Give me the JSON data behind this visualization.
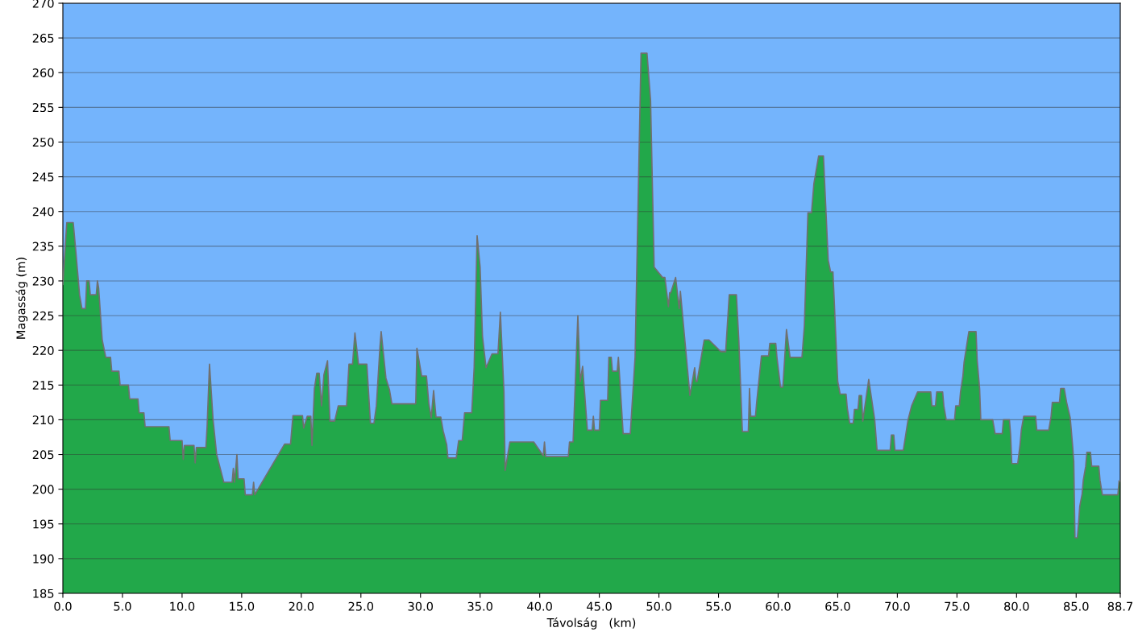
{
  "chart_data": {
    "type": "area",
    "xlabel": "Távolság   (km)",
    "ylabel": "Magasság (m)",
    "x": [
      0.0,
      0.33,
      0.87,
      1.1,
      1.4,
      1.6,
      1.9,
      2.0,
      2.2,
      2.3,
      2.8,
      2.9,
      3.0,
      3.3,
      3.6,
      4.0,
      4.1,
      4.7,
      4.8,
      5.5,
      5.6,
      6.3,
      6.4,
      6.8,
      6.9,
      8.9,
      9.0,
      10.0,
      10.1,
      10.2,
      11.0,
      11.1,
      11.2,
      12.0,
      12.1,
      12.3,
      12.6,
      12.9,
      13.2,
      13.5,
      14.2,
      14.3,
      14.4,
      14.6,
      14.7,
      15.2,
      15.3,
      15.9,
      16.0,
      16.1,
      18.6,
      19.1,
      19.3,
      20.1,
      20.2,
      20.5,
      20.8,
      20.9,
      21.1,
      21.3,
      21.5,
      21.7,
      21.9,
      22.2,
      22.4,
      22.8,
      23.1,
      23.8,
      24.0,
      24.3,
      24.5,
      24.8,
      25.5,
      25.8,
      26.1,
      26.3,
      26.6,
      26.7,
      27.1,
      27.4,
      27.6,
      29.6,
      29.7,
      29.9,
      30.1,
      30.5,
      30.7,
      30.9,
      31.1,
      31.3,
      31.7,
      31.9,
      32.2,
      32.3,
      33.0,
      33.2,
      33.5,
      33.7,
      34.3,
      34.5,
      34.75,
      35.0,
      35.2,
      35.5,
      36.0,
      36.5,
      36.7,
      37.0,
      37.1,
      37.5,
      39.5,
      40.3,
      40.4,
      40.5,
      42.4,
      42.5,
      42.8,
      43.2,
      43.4,
      43.6,
      44.0,
      44.4,
      44.5,
      44.6,
      45.0,
      45.1,
      45.7,
      45.8,
      46.0,
      46.1,
      46.5,
      46.6,
      47.0,
      47.1,
      47.6,
      48.0,
      48.5,
      49.0,
      49.3,
      49.6,
      50.3,
      50.5,
      50.8,
      50.9,
      51.0,
      51.4,
      51.7,
      51.8,
      52.2,
      52.6,
      53.0,
      53.1,
      53.2,
      53.8,
      54.2,
      55.2,
      55.6,
      55.9,
      56.5,
      56.7,
      57.0,
      57.5,
      57.6,
      57.7,
      58.1,
      58.2,
      58.6,
      59.2,
      59.3,
      59.8,
      59.9,
      60.2,
      60.4,
      60.7,
      61.0,
      62.0,
      62.2,
      62.5,
      62.8,
      63.0,
      63.2,
      63.4,
      63.8,
      64.2,
      64.4,
      64.6,
      65.0,
      65.2,
      65.7,
      65.8,
      66.0,
      66.3,
      66.4,
      66.7,
      66.8,
      67.0,
      67.1,
      67.6,
      68.1,
      68.3,
      69.4,
      69.5,
      69.7,
      69.8,
      70.5,
      70.7,
      70.9,
      71.2,
      71.7,
      72.8,
      72.9,
      73.2,
      73.3,
      73.8,
      73.9,
      74.1,
      74.8,
      74.9,
      75.2,
      75.3,
      75.5,
      75.6,
      75.8,
      76.0,
      76.6,
      76.7,
      76.9,
      77.0,
      78.0,
      78.2,
      78.8,
      78.9,
      79.4,
      79.5,
      79.6,
      80.1,
      80.3,
      80.4,
      80.6,
      81.6,
      81.7,
      82.7,
      82.9,
      83.0,
      83.6,
      83.7,
      84.0,
      84.2,
      84.5,
      84.7,
      84.8,
      84.9,
      85.1,
      85.2,
      85.3,
      85.5,
      85.6,
      85.8,
      85.9,
      86.2,
      86.3,
      86.9,
      87.0,
      87.2,
      88.5,
      88.6,
      88.7
    ],
    "values": [
      229.5,
      238.4,
      238.4,
      234,
      228,
      226,
      226,
      230,
      230,
      228,
      228,
      230,
      229,
      221.5,
      219,
      219,
      217,
      217,
      215,
      215,
      213,
      213,
      211,
      211,
      209,
      209,
      207,
      207,
      204.3,
      206.3,
      206.3,
      203.8,
      206,
      206,
      209,
      218,
      210,
      205,
      203,
      201,
      201,
      203,
      201,
      205,
      201.5,
      201.5,
      199.2,
      199.2,
      201,
      199.2,
      206.5,
      206.5,
      210.6,
      210.6,
      208.8,
      210.5,
      210.5,
      206.3,
      214.5,
      216.7,
      216.7,
      212,
      216.5,
      218.5,
      209.8,
      209.8,
      212,
      212,
      218,
      218,
      222.5,
      218,
      218,
      209.5,
      209.5,
      212,
      220.5,
      222.7,
      216,
      214.3,
      212.3,
      212.3,
      220.3,
      218.3,
      216.3,
      216.3,
      212.3,
      210.3,
      214.2,
      210.4,
      210.4,
      208.4,
      206.4,
      204.5,
      204.5,
      207,
      207,
      211,
      211,
      217.5,
      236.5,
      232,
      222,
      217.5,
      219.5,
      219.5,
      225.5,
      214,
      202.7,
      206.8,
      206.8,
      204.8,
      206.8,
      204.7,
      204.7,
      206.8,
      206.8,
      225,
      215.5,
      217.7,
      208.5,
      208.5,
      210.5,
      208.5,
      208.5,
      212.8,
      212.8,
      219,
      219,
      217,
      217,
      219,
      208,
      208,
      208,
      219,
      262.8,
      262.8,
      256,
      232,
      230.5,
      230.5,
      226.3,
      228.3,
      228.3,
      230.5,
      226,
      228.5,
      221,
      213.5,
      217.5,
      215.5,
      215.5,
      221.5,
      221.5,
      219.8,
      219.8,
      228,
      228,
      221.5,
      208.3,
      208.3,
      214.5,
      210.5,
      210.5,
      212.5,
      219.2,
      219.2,
      221,
      221,
      219,
      214.7,
      214.7,
      223,
      219,
      219,
      223.5,
      239.8,
      239.8,
      244,
      246,
      248,
      248,
      233,
      231.3,
      231.3,
      215.5,
      213.7,
      213.7,
      211.7,
      209.5,
      209.5,
      211.5,
      211.5,
      213.5,
      213.5,
      209.8,
      215.8,
      210,
      205.6,
      205.6,
      207.8,
      207.8,
      205.6,
      205.6,
      207.8,
      210,
      212,
      214,
      214,
      212,
      212,
      214,
      214,
      212,
      210,
      210,
      212,
      212,
      214,
      216.3,
      218.3,
      220.5,
      222.7,
      222.7,
      218.5,
      214.5,
      210,
      210,
      208,
      208,
      210,
      210,
      207.9,
      203.7,
      203.7,
      206.5,
      208.5,
      210.5,
      210.5,
      208.5,
      208.5,
      210.5,
      212.5,
      212.5,
      214.5,
      214.5,
      212.5,
      210.3,
      206.3,
      204,
      193,
      193,
      195,
      197.5,
      199.3,
      201.3,
      203.3,
      205.3,
      205.3,
      203.3,
      203.3,
      201.3,
      199.2,
      199.2,
      201.2,
      201.2
    ],
    "color": "#22a84a",
    "xlim": [
      0,
      88.7
    ],
    "ylim": [
      185,
      270
    ],
    "xticks": [
      {
        "value": 0,
        "label": "0.0"
      },
      {
        "value": 5,
        "label": "5.0"
      },
      {
        "value": 10,
        "label": "10.0"
      },
      {
        "value": 15,
        "label": "15.0"
      },
      {
        "value": 20,
        "label": "20.0"
      },
      {
        "value": 25,
        "label": "25.0"
      },
      {
        "value": 30,
        "label": "30.0"
      },
      {
        "value": 35,
        "label": "35.0"
      },
      {
        "value": 40,
        "label": "40.0"
      },
      {
        "value": 45,
        "label": "45.0"
      },
      {
        "value": 50,
        "label": "50.0"
      },
      {
        "value": 55,
        "label": "55.0"
      },
      {
        "value": 60,
        "label": "60.0"
      },
      {
        "value": 65,
        "label": "65.0"
      },
      {
        "value": 70,
        "label": "70.0"
      },
      {
        "value": 75,
        "label": "75.0"
      },
      {
        "value": 80,
        "label": "80.0"
      },
      {
        "value": 85,
        "label": "85.0"
      },
      {
        "value": 88.7,
        "label": "88.7"
      }
    ],
    "yticks": [
      185,
      190,
      195,
      200,
      205,
      210,
      215,
      220,
      225,
      230,
      235,
      240,
      245,
      250,
      255,
      260,
      265,
      270
    ],
    "grid": "y",
    "legend": false
  }
}
